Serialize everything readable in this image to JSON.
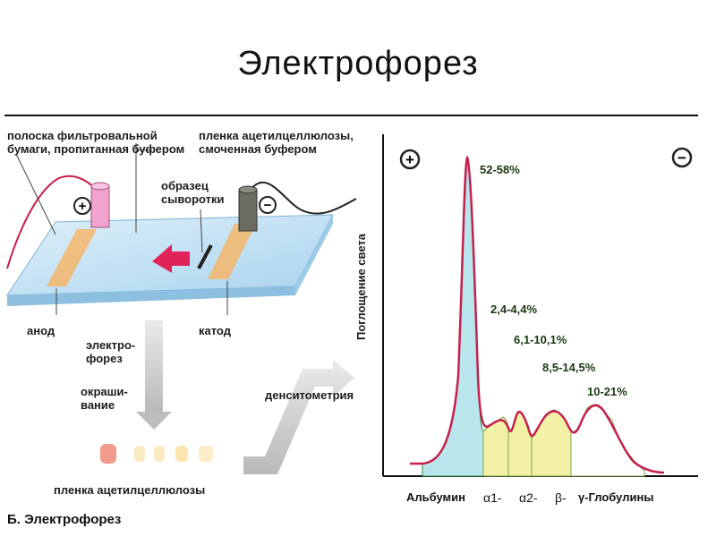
{
  "slide": {
    "title": "Электрофорез"
  },
  "apparatus": {
    "label_filter_strip": "полоска фильтровальной бумаги, пропитанная буфером",
    "label_film": "пленка ацетилцеллюлозы, смоченная буфером",
    "label_sample": "образец сыворотки",
    "label_anode": "анод",
    "label_cathode": "катод",
    "plus_sign": "+",
    "minus_sign": "−"
  },
  "process": {
    "step_electrophoresis": "электро-форез",
    "step_staining": "окраши-вание",
    "step_densitometry": "денситометрия",
    "film_label": "пленка ацетилцеллюлозы"
  },
  "figure_caption": "Б. Электрофорез",
  "chart_data": {
    "type": "area",
    "ylabel": "Поглощение света",
    "xlabel_parts": [
      "Альбумин",
      "α1-",
      "α2-",
      "β-",
      "γ-Глобулины"
    ],
    "fractions": [
      {
        "name": "Альбумин",
        "range": "52-58%",
        "color": "#b9e6ec"
      },
      {
        "name": "α1",
        "range": "2,4-4,4%",
        "color": "#f3f1a6"
      },
      {
        "name": "α2",
        "range": "6,1-10,1%",
        "color": "#f3f1a6"
      },
      {
        "name": "β",
        "range": "8,5-14,5%",
        "color": "#f3f1a6"
      },
      {
        "name": "γ",
        "range": "10-21%",
        "color": "#ffffff"
      }
    ],
    "pole_plus": "+",
    "pole_minus": "−",
    "curve_color": "#c4214e"
  }
}
